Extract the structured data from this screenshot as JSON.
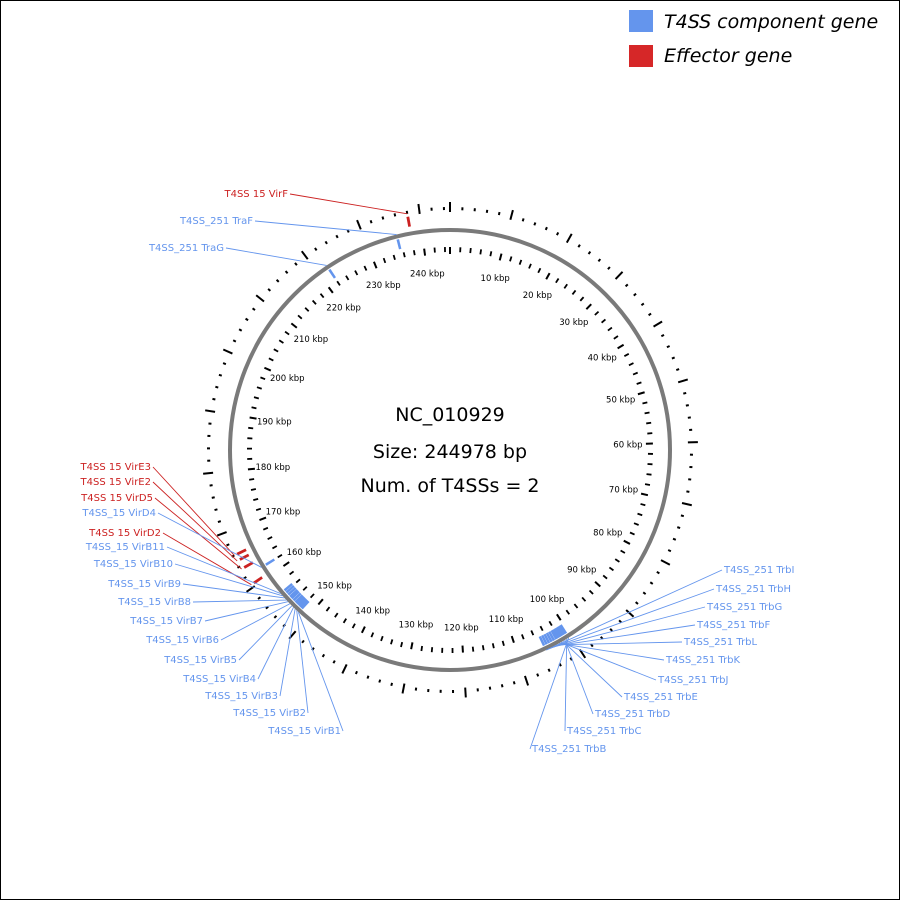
{
  "legend": [
    {
      "label": "T4SS component gene",
      "color": "#6495ed",
      "icon": "blue-square-icon"
    },
    {
      "label": "Effector gene",
      "color": "#d62728",
      "icon": "red-square-icon"
    }
  ],
  "center": {
    "accession": "NC_010929",
    "size_text": "Size: 244978 bp",
    "t4ss_text": "Num. of T4SSs = 2"
  },
  "genome_size_bp": 244978,
  "colors": {
    "component": "#6495ed",
    "effector": "#cc2222",
    "backbone": "#777777",
    "ticks": "#000000"
  },
  "kbp_labels": [
    "10 kbp",
    "20 kbp",
    "30 kbp",
    "40 kbp",
    "50 kbp",
    "60 kbp",
    "70 kbp",
    "80 kbp",
    "90 kbp",
    "100 kbp",
    "110 kbp",
    "120 kbp",
    "130 kbp",
    "140 kbp",
    "150 kbp",
    "160 kbp",
    "170 kbp",
    "180 kbp",
    "190 kbp",
    "200 kbp",
    "210 kbp",
    "220 kbp",
    "230 kbp",
    "240 kbp"
  ],
  "genes": [
    {
      "label": "T4SS 15 VirF",
      "type": "effector",
      "kbp": 238.0
    },
    {
      "label": "T4SS_251 TraF",
      "type": "component",
      "kbp": 235.5
    },
    {
      "label": "T4SS_251 TraG",
      "type": "component",
      "kbp": 222.0
    },
    {
      "label": "T4SS 15 VirE3",
      "type": "effector",
      "kbp": 166.0
    },
    {
      "label": "T4SS 15 VirE2",
      "type": "effector",
      "kbp": 165.0
    },
    {
      "label": "T4SS 15 VirD5",
      "type": "effector",
      "kbp": 163.5
    },
    {
      "label": "T4SS_15 VirD4",
      "type": "component",
      "kbp": 162.0
    },
    {
      "label": "T4SS 15 VirD2",
      "type": "effector",
      "kbp": 160.5
    },
    {
      "label": "T4SS_15 VirB11",
      "type": "component",
      "kbp": 156.3
    },
    {
      "label": "T4SS_15 VirB10",
      "type": "component",
      "kbp": 155.8
    },
    {
      "label": "T4SS_15 VirB9",
      "type": "component",
      "kbp": 155.3
    },
    {
      "label": "T4SS_15 VirB8",
      "type": "component",
      "kbp": 154.8
    },
    {
      "label": "T4SS_15 VirB7",
      "type": "component",
      "kbp": 154.4
    },
    {
      "label": "T4SS_15 VirB6",
      "type": "component",
      "kbp": 153.9
    },
    {
      "label": "T4SS_15 VirB5",
      "type": "component",
      "kbp": 153.4
    },
    {
      "label": "T4SS_15 VirB4",
      "type": "component",
      "kbp": 153.0
    },
    {
      "label": "T4SS_15 VirB3",
      "type": "component",
      "kbp": 152.6
    },
    {
      "label": "T4SS_15 VirB2",
      "type": "component",
      "kbp": 152.2
    },
    {
      "label": "T4SS_15 VirB1",
      "type": "component",
      "kbp": 151.8
    },
    {
      "label": "T4SS_251 TrbI",
      "type": "component",
      "kbp": 105.0
    },
    {
      "label": "T4SS_251 TrbH",
      "type": "component",
      "kbp": 104.5
    },
    {
      "label": "T4SS_251 TrbG",
      "type": "component",
      "kbp": 104.0
    },
    {
      "label": "T4SS_251 TrbF",
      "type": "component",
      "kbp": 103.5
    },
    {
      "label": "T4SS_251 TrbL",
      "type": "component",
      "kbp": 103.0
    },
    {
      "label": "T4SS_251 TrbK",
      "type": "component",
      "kbp": 102.5
    },
    {
      "label": "T4SS_251 TrbJ",
      "type": "component",
      "kbp": 102.1
    },
    {
      "label": "T4SS_251 TrbE",
      "type": "component",
      "kbp": 101.7
    },
    {
      "label": "T4SS_251 TrbD",
      "type": "component",
      "kbp": 101.3
    },
    {
      "label": "T4SS_251 TrbC",
      "type": "component",
      "kbp": 100.9
    },
    {
      "label": "T4SS_251 TrbB",
      "type": "component",
      "kbp": 100.5
    }
  ]
}
